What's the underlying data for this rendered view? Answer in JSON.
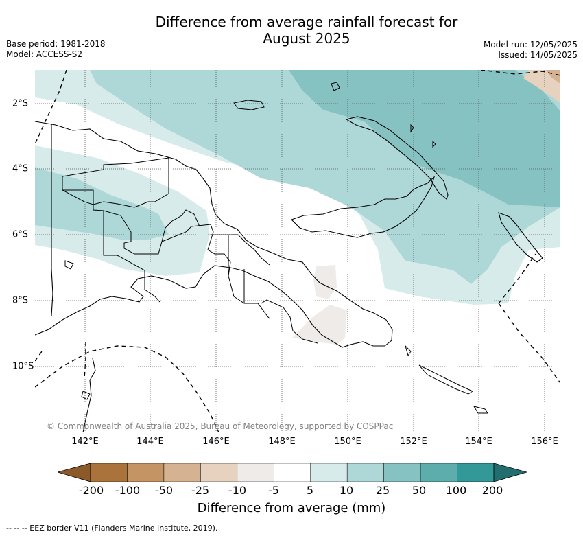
{
  "title_line1": "Difference from average rainfall forecast for",
  "title_line2": "August 2025",
  "meta_left": [
    "Base period: 1981-2018",
    "Model: ACCESS-S2"
  ],
  "meta_right": [
    "Model run: 12/05/2025",
    "Issued: 14/05/2025"
  ],
  "copyright": "© Commonwealth of Australia 2025, Bureau of Meteorology, supported by COSPPac",
  "lon_labels": [
    "142°E",
    "144°E",
    "146°E",
    "148°E",
    "150°E",
    "152°E",
    "154°E",
    "156°E"
  ],
  "lat_labels": [
    "2°S",
    "4°S",
    "6°S",
    "8°S",
    "10°S"
  ],
  "colorbar": {
    "labels": [
      "-200",
      "-100",
      "-50",
      "-25",
      "-10",
      "-5",
      "5",
      "10",
      "25",
      "50",
      "100",
      "200"
    ],
    "colors": [
      "#8c5a28",
      "#aa733c",
      "#c49464",
      "#d5b291",
      "#e6d2bf",
      "#eeebe8",
      "#ffffff",
      "#d6ebea",
      "#aed8d8",
      "#86c2c2",
      "#5eadad",
      "#329898",
      "#226e6e"
    ],
    "title": "Difference from average (mm)"
  },
  "eez_legend": "--  --  -- EEZ border V11 (Flanders Marine Institute, 2019)."
}
